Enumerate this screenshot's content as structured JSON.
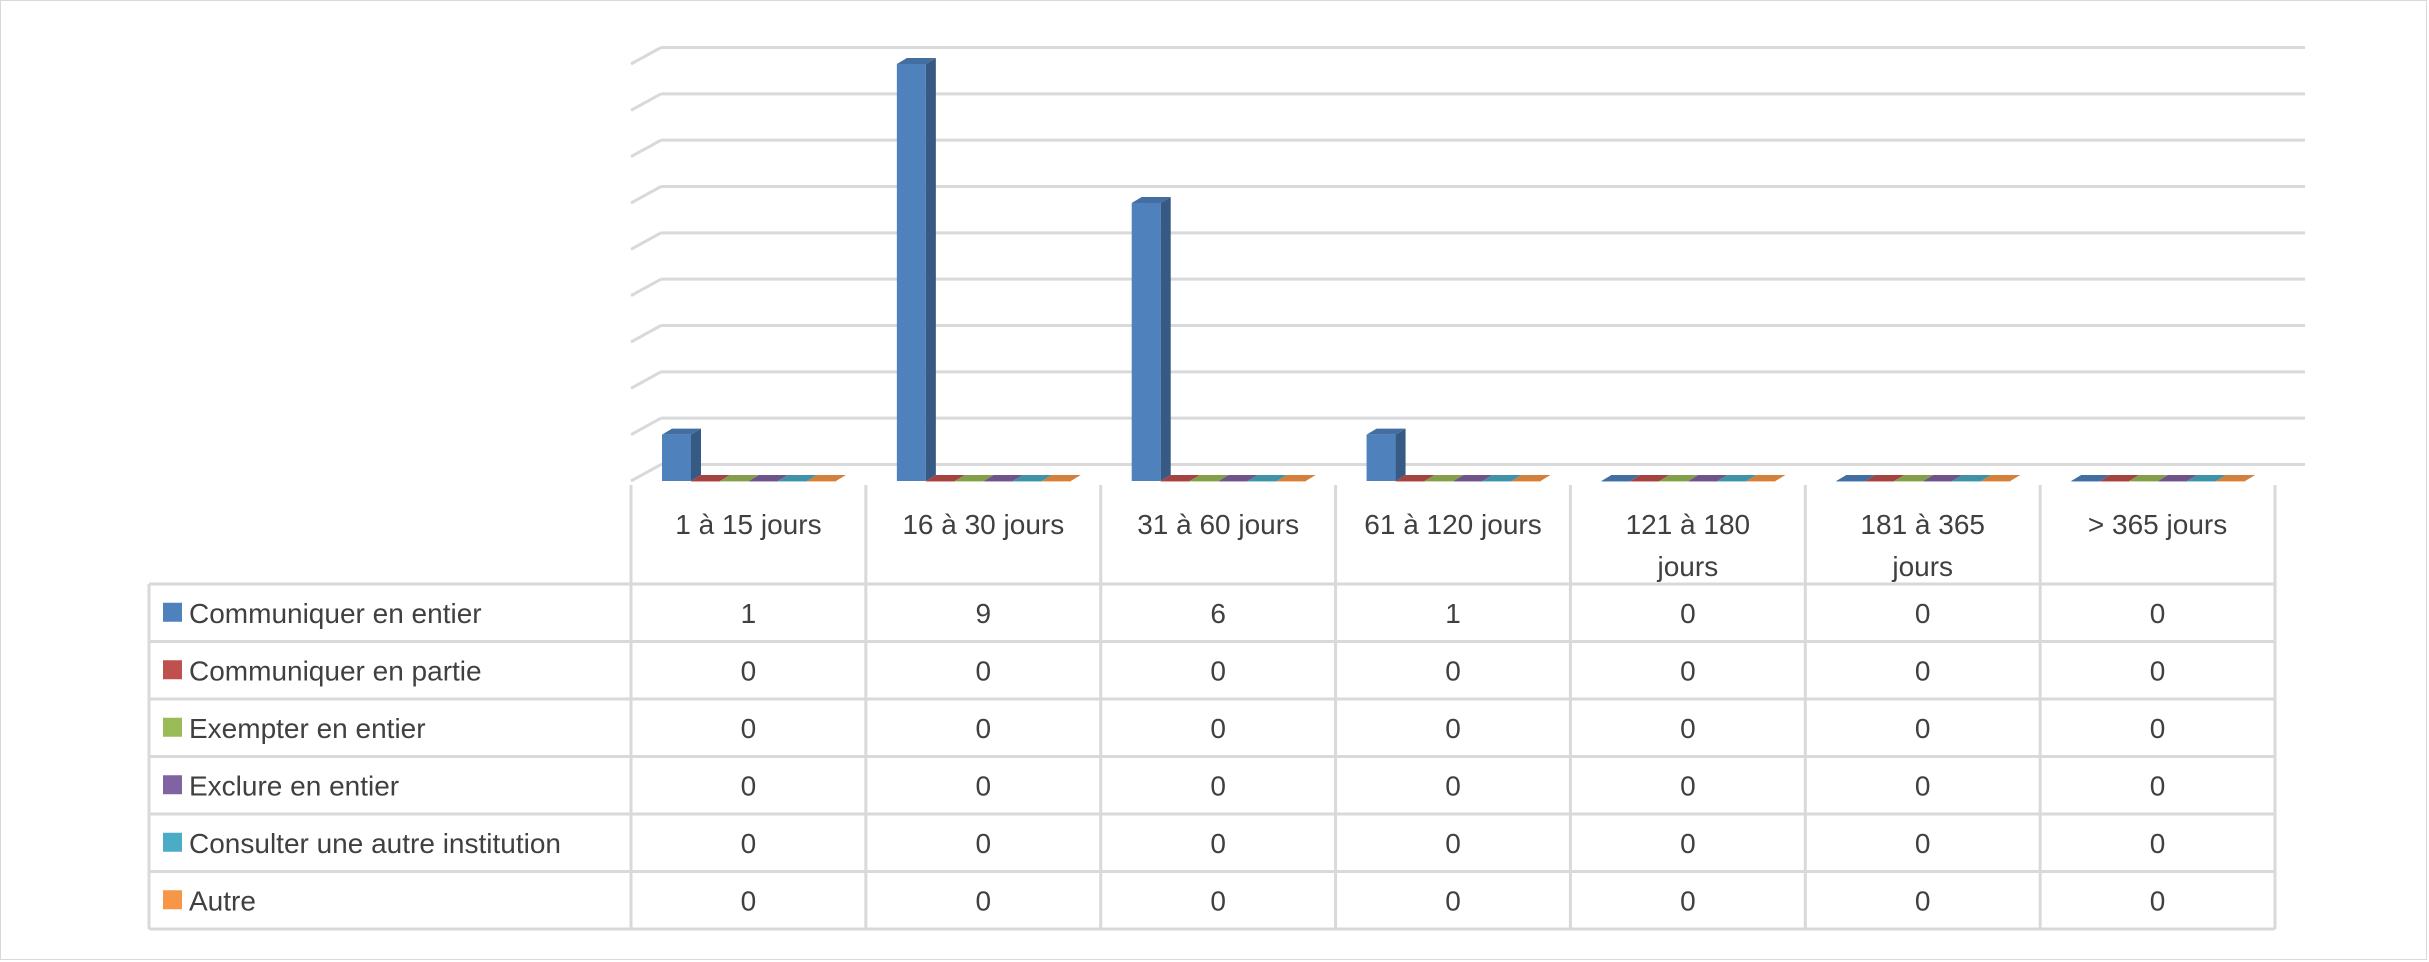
{
  "chart_data": {
    "type": "bar",
    "categories": [
      "1 à 15 jours",
      "16 à 30 jours",
      "31 à 60 jours",
      "61 à 120 jours",
      "121 à 180 jours",
      "181 à 365 jours",
      "> 365 jours"
    ],
    "series": [
      {
        "name": "Communiquer en entier",
        "color": "#4f81bd",
        "values": [
          1,
          9,
          6,
          1,
          0,
          0,
          0
        ]
      },
      {
        "name": "Communiquer en partie",
        "color": "#c0504d",
        "values": [
          0,
          0,
          0,
          0,
          0,
          0,
          0
        ]
      },
      {
        "name": "Exempter en entier",
        "color": "#9bbb59",
        "values": [
          0,
          0,
          0,
          0,
          0,
          0,
          0
        ]
      },
      {
        "name": "Exclure en entier",
        "color": "#8064a2",
        "values": [
          0,
          0,
          0,
          0,
          0,
          0,
          0
        ]
      },
      {
        "name": "Consulter une autre institution",
        "color": "#4bacc6",
        "values": [
          0,
          0,
          0,
          0,
          0,
          0,
          0
        ]
      },
      {
        "name": "Autre",
        "color": "#f79646",
        "values": [
          0,
          0,
          0,
          0,
          0,
          0,
          0
        ]
      }
    ],
    "ylim": [
      0,
      9
    ],
    "grid": true,
    "legend": "data-table",
    "title": "",
    "xlabel": "",
    "ylabel": ""
  }
}
